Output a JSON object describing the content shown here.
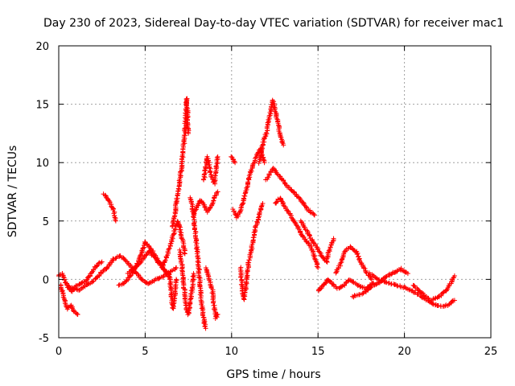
{
  "chart_data": {
    "type": "scatter",
    "title": "Day 230 of 2023, Sidereal Day-to-day VTEC variation (SDTVAR) for receiver mac1",
    "xlabel": "GPS time / hours",
    "ylabel": "SDTVAR / TECUs",
    "xlim": [
      0,
      25
    ],
    "ylim": [
      -5,
      20
    ],
    "xticks": [
      0,
      5,
      10,
      15,
      20,
      25
    ],
    "yticks": [
      -5,
      0,
      5,
      10,
      15,
      20
    ],
    "grid": true,
    "marker": "+",
    "color": "#ff0000",
    "series": [
      {
        "name": "mac1",
        "tracks": [
          {
            "t": [
              0.0,
              0.2,
              0.4,
              0.6,
              0.8,
              1.0,
              1.2,
              1.5,
              1.8,
              2.0,
              2.2,
              2.5
            ],
            "v": [
              0.3,
              0.5,
              -0.3,
              -0.8,
              -1.0,
              -0.6,
              -0.4,
              -0.2,
              0.3,
              0.8,
              1.2,
              1.5
            ]
          },
          {
            "t": [
              0.1,
              0.3,
              0.5,
              0.7,
              0.9,
              1.1
            ],
            "v": [
              -0.5,
              -1.5,
              -2.5,
              -2.2,
              -2.8,
              -3.0
            ]
          },
          {
            "t": [
              0.5,
              0.8,
              1.2,
              1.6,
              2.0,
              2.4,
              2.8,
              3.2,
              3.6,
              4.0,
              4.4,
              4.8,
              5.2,
              5.6,
              6.0,
              6.4,
              6.8
            ],
            "v": [
              -0.5,
              -0.8,
              -0.9,
              -0.5,
              -0.2,
              0.5,
              1.0,
              1.8,
              2.0,
              1.4,
              0.7,
              0.0,
              -0.4,
              0.0,
              0.2,
              0.6,
              1.0
            ]
          },
          {
            "t": [
              2.6,
              2.8,
              3.0,
              3.2,
              3.3
            ],
            "v": [
              7.3,
              7.0,
              6.5,
              5.8,
              5.0
            ]
          },
          {
            "t": [
              3.5,
              3.8,
              4.2,
              4.5,
              4.8,
              5.0,
              5.2,
              5.5,
              5.8,
              6.1,
              6.4
            ],
            "v": [
              -0.5,
              -0.3,
              0.4,
              1.2,
              2.2,
              3.2,
              2.9,
              2.2,
              1.5,
              0.8,
              0.2
            ]
          },
          {
            "t": [
              4.0,
              4.4,
              4.8,
              5.2,
              5.6,
              6.0,
              6.4
            ],
            "v": [
              0.5,
              1.0,
              1.6,
              2.4,
              1.8,
              1.0,
              0.4
            ]
          },
          {
            "t": [
              6.0,
              6.3,
              6.5,
              6.7,
              6.9,
              7.1,
              7.3
            ],
            "v": [
              1.0,
              2.2,
              3.1,
              4.2,
              5.0,
              3.8,
              2.2
            ]
          },
          {
            "t": [
              6.4,
              6.5,
              6.6,
              6.7,
              6.8
            ],
            "v": [
              0.5,
              -1.0,
              -2.5,
              -1.5,
              0.0
            ]
          },
          {
            "t": [
              6.6,
              6.7,
              6.8,
              6.9,
              7.0,
              7.1,
              7.2,
              7.3,
              7.35,
              7.4,
              7.45,
              7.5
            ],
            "v": [
              4.5,
              5.5,
              6.5,
              7.5,
              8.5,
              9.5,
              11.0,
              12.5,
              14.0,
              15.5,
              14.0,
              12.5
            ]
          },
          {
            "t": [
              7.0,
              7.1,
              7.2,
              7.3,
              7.4,
              7.5,
              7.6,
              7.7,
              7.8
            ],
            "v": [
              2.5,
              1.5,
              0.0,
              -1.5,
              -2.5,
              -3.0,
              -2.0,
              -1.0,
              0.5
            ]
          },
          {
            "t": [
              7.6,
              7.7,
              7.8,
              7.9,
              8.0,
              8.1,
              8.2,
              8.3,
              8.4,
              8.5
            ],
            "v": [
              7.0,
              6.5,
              5.5,
              4.0,
              2.5,
              1.0,
              -1.0,
              -2.5,
              -3.5,
              -4.2
            ]
          },
          {
            "t": [
              7.8,
              8.0,
              8.2,
              8.4,
              8.6,
              8.8,
              9.0,
              9.2
            ],
            "v": [
              5.5,
              6.2,
              6.8,
              6.4,
              5.8,
              6.2,
              7.0,
              7.5
            ]
          },
          {
            "t": [
              8.4,
              8.6,
              8.8,
              9.0,
              9.2
            ],
            "v": [
              8.5,
              10.5,
              9.0,
              8.2,
              10.5
            ]
          },
          {
            "t": [
              8.5,
              8.7,
              8.9,
              9.0,
              9.1,
              9.2
            ],
            "v": [
              1.0,
              0.0,
              -1.0,
              -2.5,
              -3.3,
              -3.0
            ]
          },
          {
            "t": [
              10.0,
              10.1,
              10.2
            ],
            "v": [
              10.5,
              10.2,
              10.0
            ]
          },
          {
            "t": [
              10.1,
              10.3,
              10.5,
              10.7,
              10.9,
              11.1,
              11.3,
              11.5,
              11.7,
              11.9
            ],
            "v": [
              6.0,
              5.3,
              5.8,
              6.8,
              8.0,
              9.2,
              10.0,
              10.8,
              11.2,
              10.0
            ]
          },
          {
            "t": [
              10.5,
              10.6,
              10.7,
              10.8,
              10.9,
              11.0,
              11.2,
              11.4,
              11.6,
              11.8
            ],
            "v": [
              1.0,
              -0.5,
              -1.7,
              -1.0,
              0.5,
              1.5,
              3.0,
              4.5,
              5.5,
              6.5
            ]
          },
          {
            "t": [
              11.6,
              11.8,
              12.0,
              12.2,
              12.4,
              12.6,
              12.8,
              13.0
            ],
            "v": [
              10.0,
              11.5,
              12.5,
              14.0,
              15.3,
              14.0,
              12.5,
              11.5
            ]
          },
          {
            "t": [
              12.0,
              12.4,
              12.8,
              13.2,
              13.6,
              14.0,
              14.4,
              14.8
            ],
            "v": [
              8.5,
              9.5,
              8.8,
              8.0,
              7.5,
              6.8,
              6.0,
              5.5
            ]
          },
          {
            "t": [
              12.5,
              12.8,
              13.1,
              13.4,
              13.7,
              14.0,
              14.3,
              14.6,
              15.0
            ],
            "v": [
              6.5,
              7.0,
              6.2,
              5.5,
              4.8,
              4.0,
              3.3,
              2.8,
              1.0
            ]
          },
          {
            "t": [
              14.0,
              14.3,
              14.6,
              14.9,
              15.2,
              15.5,
              15.7,
              15.9
            ],
            "v": [
              5.0,
              4.3,
              3.5,
              2.8,
              2.0,
              1.5,
              2.8,
              3.5
            ]
          },
          {
            "t": [
              15.0,
              15.3,
              15.6,
              15.9,
              16.2,
              16.5,
              16.8,
              17.1,
              17.4,
              17.8,
              18.2
            ],
            "v": [
              -1.0,
              -0.5,
              0.0,
              -0.5,
              -0.8,
              -0.5,
              0.0,
              -0.3,
              -0.6,
              -0.8,
              -0.3
            ]
          },
          {
            "t": [
              16.0,
              16.3,
              16.6,
              16.9,
              17.2,
              17.5,
              17.8,
              18.1
            ],
            "v": [
              0.5,
              1.3,
              2.5,
              2.8,
              2.4,
              1.4,
              0.6,
              0.0
            ]
          },
          {
            "t": [
              17.0,
              17.4,
              17.8,
              18.2,
              18.6,
              19.0,
              19.4,
              19.8,
              20.2
            ],
            "v": [
              -1.5,
              -1.3,
              -1.0,
              -0.5,
              -0.2,
              0.3,
              0.6,
              0.9,
              0.5
            ]
          },
          {
            "t": [
              18.0,
              18.5,
              19.0,
              19.5,
              20.0,
              20.5,
              21.0,
              21.5,
              22.0,
              22.5,
              22.9
            ],
            "v": [
              0.5,
              0.0,
              -0.3,
              -0.5,
              -0.7,
              -1.0,
              -1.5,
              -2.0,
              -2.3,
              -2.2,
              -1.8
            ]
          },
          {
            "t": [
              20.5,
              21.0,
              21.5,
              22.0,
              22.5,
              22.9
            ],
            "v": [
              -0.5,
              -1.2,
              -1.8,
              -1.5,
              -0.8,
              0.3
            ]
          }
        ]
      }
    ]
  }
}
